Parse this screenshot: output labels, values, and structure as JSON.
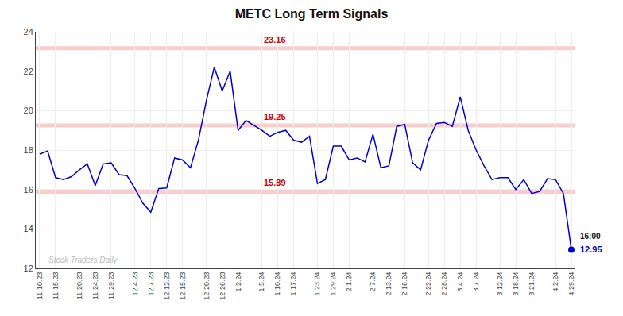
{
  "chart_data": {
    "type": "line",
    "title": "METC Long Term Signals",
    "categories": [
      "11.10.23",
      null,
      "11.15.23",
      null,
      null,
      "11.20.23",
      null,
      "11.24.23",
      null,
      "11.29.23",
      null,
      null,
      "12.4.23",
      null,
      "12.7.23",
      null,
      "12.12.23",
      null,
      "12.15.23",
      null,
      null,
      "12.20.23",
      null,
      "12.26.23",
      null,
      "1.2.24",
      null,
      null,
      "1.5.24",
      null,
      "1.10.24",
      null,
      "1.17.24",
      null,
      null,
      "1.23.24",
      null,
      "1.29.24",
      null,
      "2.1.24",
      null,
      null,
      "2.7.24",
      null,
      "2.13.24",
      null,
      "2.16.24",
      null,
      null,
      "2.22.24",
      null,
      "2.28.24",
      null,
      "3.4.24",
      null,
      "3.7.24",
      null,
      null,
      "3.12.24",
      null,
      "3.18.24",
      null,
      "3.21.24",
      null,
      null,
      "4.2.24",
      null,
      "4.29.24"
    ],
    "values": [
      17.8,
      17.95,
      16.6,
      16.5,
      16.65,
      17.0,
      17.3,
      16.2,
      17.3,
      17.35,
      16.75,
      16.7,
      16.05,
      15.3,
      14.85,
      16.05,
      16.08,
      17.6,
      17.5,
      17.1,
      18.5,
      20.5,
      22.2,
      21.0,
      22.0,
      19.0,
      19.5,
      19.25,
      19.0,
      18.7,
      18.9,
      19.0,
      18.5,
      18.4,
      18.7,
      16.3,
      16.5,
      18.2,
      18.2,
      17.5,
      17.6,
      17.4,
      18.8,
      17.1,
      17.2,
      19.2,
      19.3,
      17.35,
      17.0,
      18.5,
      19.35,
      19.4,
      19.2,
      20.7,
      19.0,
      18.0,
      17.2,
      16.5,
      16.6,
      16.6,
      16.0,
      16.5,
      15.8,
      15.9,
      16.55,
      16.5,
      15.8,
      12.95
    ],
    "color": "#0000cc",
    "hlines": [
      {
        "value": 23.16,
        "label": "23.16",
        "color": "#cc0000"
      },
      {
        "value": 19.25,
        "label": "19.25",
        "color": "#cc0000"
      },
      {
        "value": 15.89,
        "label": "15.89",
        "color": "#cc0000"
      }
    ],
    "band_color": "#f5b8b8",
    "last_point": {
      "time": "16:00",
      "value": 12.95,
      "color": "#0000cc"
    },
    "watermark": "Stock Traders Daily",
    "ylim": [
      12,
      24
    ],
    "yticks": [
      12,
      14,
      16,
      18,
      20,
      22,
      24
    ],
    "grid": true
  }
}
